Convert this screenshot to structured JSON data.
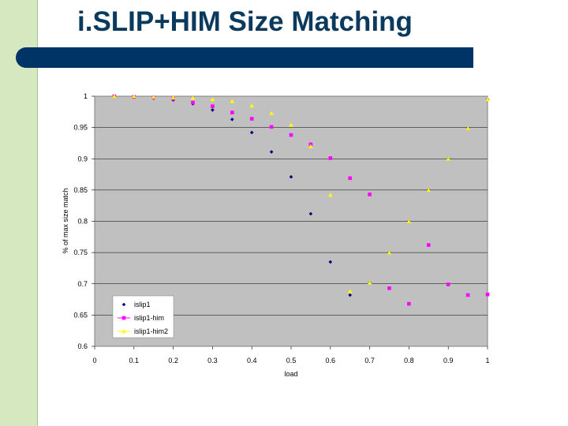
{
  "slide": {
    "title": "i.SLIP+HIM Size Matching"
  },
  "chart_data": {
    "type": "scatter",
    "title": "",
    "xlabel": "load",
    "ylabel": "% of max size match",
    "xlim": [
      0,
      1
    ],
    "ylim": [
      0.6,
      1
    ],
    "x_ticks": [
      "0",
      "0.1",
      "0.2",
      "0.3",
      "0.4",
      "0.5",
      "0.6",
      "0.7",
      "0.8",
      "0.9",
      "1"
    ],
    "y_ticks": [
      "0.6",
      "0.65",
      "0.7",
      "0.75",
      "0.8",
      "0.85",
      "0.9",
      "0.95",
      "1"
    ],
    "grid": "horizontal gridlines every 0.05",
    "legend_position": "bottom-left",
    "colors": {
      "plot_background": "#c0c0c0"
    },
    "series": [
      {
        "name": "islip1",
        "marker": "diamond",
        "color": "#000080",
        "x": [
          0.05,
          0.1,
          0.15,
          0.2,
          0.25,
          0.3,
          0.35,
          0.4,
          0.45,
          0.5,
          0.55,
          0.6,
          0.65,
          0.7,
          0.75,
          0.8,
          0.85,
          0.9,
          0.95,
          1.0
        ],
        "y": [
          1.0,
          0.999,
          0.997,
          0.994,
          0.988,
          0.978,
          0.963,
          0.942,
          0.911,
          0.871,
          0.812,
          0.735,
          0.682,
          0.702,
          0.75,
          0.8,
          0.85,
          0.9,
          0.949,
          0.995
        ]
      },
      {
        "name": "islip1-him",
        "marker": "square",
        "color": "#ff00ff",
        "x": [
          0.05,
          0.1,
          0.15,
          0.2,
          0.25,
          0.3,
          0.35,
          0.4,
          0.45,
          0.5,
          0.55,
          0.6,
          0.65,
          0.7,
          0.75,
          0.8,
          0.85,
          0.9,
          0.95,
          1.0
        ],
        "y": [
          1.0,
          0.999,
          0.998,
          0.996,
          0.99,
          0.984,
          0.974,
          0.964,
          0.951,
          0.938,
          0.923,
          0.901,
          0.869,
          0.843,
          0.693,
          0.668,
          0.762,
          0.699,
          0.682,
          0.683
        ]
      },
      {
        "name": "islip1-him2",
        "marker": "triangle",
        "color": "#ffff00",
        "x": [
          0.05,
          0.1,
          0.15,
          0.2,
          0.25,
          0.3,
          0.35,
          0.4,
          0.45,
          0.5,
          0.55,
          0.6,
          0.65,
          0.7,
          0.75,
          0.8,
          0.85,
          0.9,
          0.95,
          1.0
        ],
        "y": [
          1.0,
          1.0,
          0.999,
          0.998,
          0.997,
          0.995,
          0.992,
          0.985,
          0.973,
          0.954,
          0.92,
          0.842,
          0.688,
          0.702,
          0.75,
          0.8,
          0.85,
          0.9,
          0.949,
          0.995
        ]
      }
    ]
  }
}
